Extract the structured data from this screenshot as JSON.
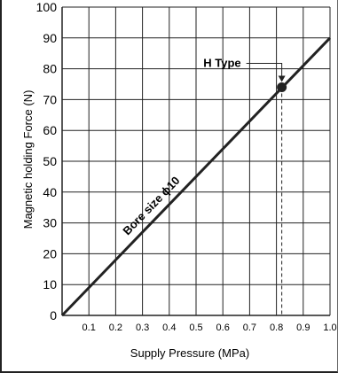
{
  "chart_data": {
    "type": "line",
    "xlabel": "Supply Pressure (MPa)",
    "ylabel": "Magnetic holding Force (N)",
    "xlim": [
      0,
      1.0
    ],
    "ylim": [
      0,
      100
    ],
    "x_ticks": [
      0.1,
      0.2,
      0.3,
      0.4,
      0.5,
      0.6,
      0.7,
      0.8,
      0.9,
      1.0
    ],
    "x_tick_labels": [
      "0.1",
      "0.2",
      "0.3",
      "0.4",
      "0.5",
      "0.6",
      "0.7",
      "0.8",
      "0.9",
      "1.0"
    ],
    "y_ticks": [
      0,
      10,
      20,
      30,
      40,
      50,
      60,
      70,
      80,
      90,
      100
    ],
    "y_tick_labels": [
      "0",
      "10",
      "20",
      "30",
      "40",
      "50",
      "60",
      "70",
      "80",
      "90",
      "100"
    ],
    "grid": true,
    "series": [
      {
        "name": "Bore size ϕ10",
        "x": [
          0,
          1.0
        ],
        "y": [
          0,
          90
        ]
      }
    ],
    "highlight_point": {
      "label": "H Type",
      "x": 0.82,
      "y": 74
    },
    "colors": {
      "line": "#222222",
      "grid": "#222222",
      "frame": "#222222"
    }
  }
}
